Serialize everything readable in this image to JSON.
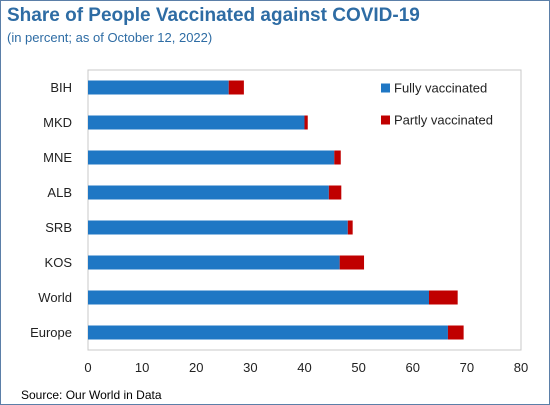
{
  "chart_data": {
    "type": "bar",
    "orientation": "horizontal",
    "stacked": true,
    "title": "Share of People Vaccinated against COVID-19",
    "subtitle": "(in percent; as of October 12, 2022)",
    "categories": [
      "BIH",
      "MKD",
      "MNE",
      "ALB",
      "SRB",
      "KOS",
      "World",
      "Europe"
    ],
    "series": [
      {
        "name": "Fully vaccinated",
        "color": "#1f77c4",
        "values": [
          26.0,
          40.0,
          45.5,
          44.5,
          48.0,
          46.5,
          63.0,
          66.5
        ]
      },
      {
        "name": "Partly vaccinated",
        "color": "#c00000",
        "values": [
          2.8,
          0.6,
          1.2,
          2.3,
          0.9,
          4.5,
          5.3,
          2.9
        ]
      }
    ],
    "xlim": [
      0,
      80
    ],
    "xticks": [
      0,
      10,
      20,
      30,
      40,
      50,
      60,
      70,
      80
    ],
    "legend_position": "top-right",
    "grid": false
  },
  "source": "Source: Our World in Data"
}
